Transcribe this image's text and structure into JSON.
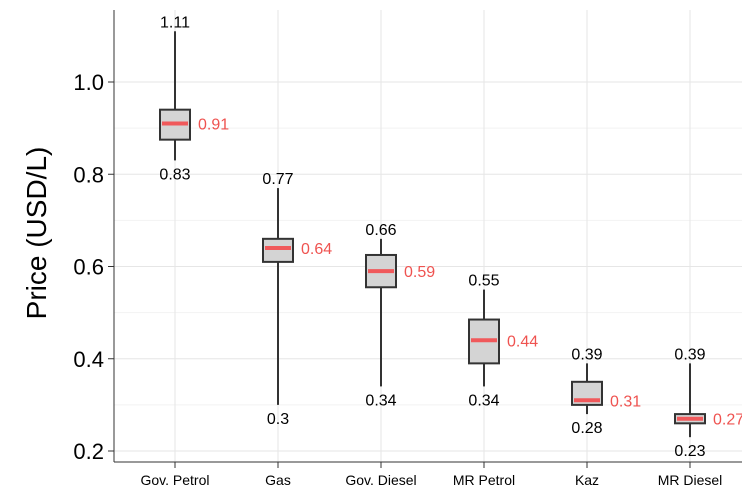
{
  "chart_data": {
    "type": "boxplot",
    "title": "",
    "xlabel": "",
    "ylabel": "Price (USD/L)",
    "ylim": [
      0.19,
      1.16
    ],
    "y_ticks": [
      0.2,
      0.4,
      0.6,
      0.8,
      1.0
    ],
    "y_tick_labels": [
      "0.2",
      "0.4",
      "0.6",
      "0.8",
      "1.0"
    ],
    "grid": true,
    "colors": {
      "box_fill": "#d4d4d4",
      "box_stroke": "#333333",
      "median": "#f0595b",
      "median_label": "#ef5350",
      "grid": "#e6e6e6",
      "axis": "#333333"
    },
    "categories": [
      "Gov. Petrol",
      "Gas",
      "Gov. Diesel",
      "MR Petrol",
      "Kaz",
      "MR Diesel"
    ],
    "boxes": [
      {
        "min": 0.83,
        "q1": 0.875,
        "median": 0.91,
        "q3": 0.94,
        "max": 1.11,
        "min_label": "0.83",
        "max_label": "1.11",
        "median_label": "0.91"
      },
      {
        "min": 0.3,
        "q1": 0.61,
        "median": 0.64,
        "q3": 0.66,
        "max": 0.77,
        "min_label": "0.3",
        "max_label": "0.77",
        "median_label": "0.64"
      },
      {
        "min": 0.34,
        "q1": 0.555,
        "median": 0.59,
        "q3": 0.625,
        "max": 0.66,
        "min_label": "0.34",
        "max_label": "0.66",
        "median_label": "0.59"
      },
      {
        "min": 0.34,
        "q1": 0.39,
        "median": 0.44,
        "q3": 0.485,
        "max": 0.55,
        "min_label": "0.34",
        "max_label": "0.55",
        "median_label": "0.44"
      },
      {
        "min": 0.28,
        "q1": 0.3,
        "median": 0.31,
        "q3": 0.35,
        "max": 0.39,
        "min_label": "0.28",
        "max_label": "0.39",
        "median_label": "0.31"
      },
      {
        "min": 0.23,
        "q1": 0.26,
        "median": 0.27,
        "q3": 0.28,
        "max": 0.39,
        "min_label": "0.23",
        "max_label": "0.39",
        "median_label": "0.27"
      }
    ]
  }
}
